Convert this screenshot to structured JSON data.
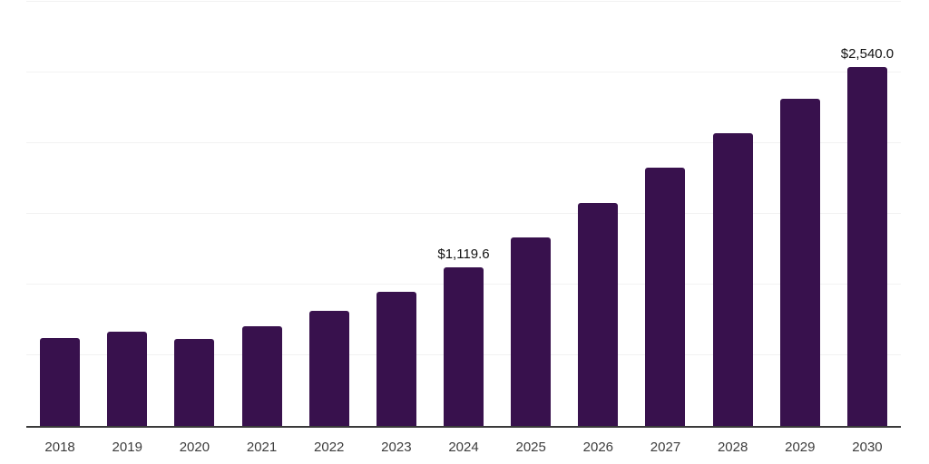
{
  "chart_data": {
    "type": "bar",
    "title": "",
    "xlabel": "",
    "ylabel": "",
    "categories": [
      "2018",
      "2019",
      "2020",
      "2021",
      "2022",
      "2023",
      "2024",
      "2025",
      "2026",
      "2027",
      "2028",
      "2029",
      "2030"
    ],
    "values": [
      620,
      665,
      615,
      703,
      812,
      947,
      1119.6,
      1331,
      1574,
      1828,
      2073,
      2316,
      2540
    ],
    "data_labels": {
      "2024": "$1,119.6",
      "2030": "$2,540.0"
    },
    "ylim": [
      0,
      3000
    ],
    "grid_step": 500,
    "grid": "horizontal",
    "legend": "none",
    "y_axis_labels_visible": false,
    "colors": {
      "bar": "#38114d",
      "grid": "#f2f2f2",
      "axis": "#3a3a3a",
      "x_tick_text": "#3c3c3c",
      "data_label_text": "#111111",
      "background": "#ffffff"
    }
  }
}
